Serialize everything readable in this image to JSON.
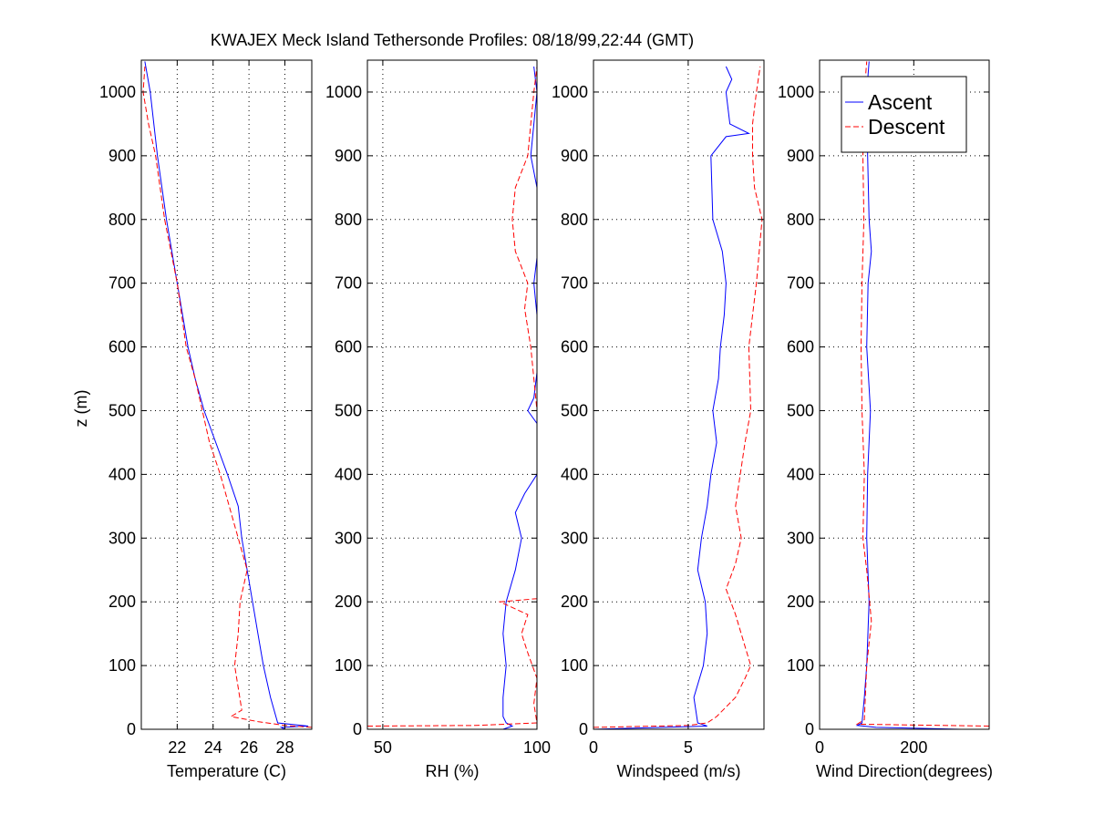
{
  "figure": {
    "title": "KWAJEX Meck Island Tethersonde Profiles: 08/18/99,22:44 (GMT)",
    "ylabel": "z (m)",
    "colors": {
      "ascent": "#0000ff",
      "descent": "#ff0000",
      "grid": "#000000"
    }
  },
  "chart_data": [
    {
      "type": "line",
      "xlabel": "Temperature (C)",
      "ylabel": "z (m)",
      "xlim": [
        20,
        29.5
      ],
      "ylim": [
        0,
        1050
      ],
      "xticks": [
        22,
        24,
        26,
        28
      ],
      "yticks": [
        0,
        100,
        200,
        300,
        400,
        500,
        600,
        700,
        800,
        900,
        1000
      ],
      "grid": true,
      "series": [
        {
          "name": "Ascent",
          "style": "solid",
          "points": [
            [
              28.0,
              0
            ],
            [
              27.8,
              3
            ],
            [
              29.3,
              5
            ],
            [
              27.6,
              10
            ],
            [
              27.2,
              50
            ],
            [
              26.8,
              100
            ],
            [
              26.5,
              150
            ],
            [
              26.2,
              200
            ],
            [
              25.6,
              300
            ],
            [
              25.4,
              350
            ],
            [
              24.8,
              400
            ],
            [
              23.5,
              500
            ],
            [
              23.0,
              550
            ],
            [
              22.6,
              600
            ],
            [
              22.0,
              700
            ],
            [
              21.4,
              800
            ],
            [
              20.9,
              900
            ],
            [
              20.5,
              1000
            ],
            [
              20.2,
              1048
            ]
          ]
        },
        {
          "name": "Descent",
          "style": "dashed",
          "points": [
            [
              29.5,
              3
            ],
            [
              28.0,
              6
            ],
            [
              26.5,
              12
            ],
            [
              25.0,
              20
            ],
            [
              25.6,
              30
            ],
            [
              25.2,
              100
            ],
            [
              25.4,
              150
            ],
            [
              25.5,
              200
            ],
            [
              25.9,
              250
            ],
            [
              25.4,
              300
            ],
            [
              24.4,
              400
            ],
            [
              23.8,
              450
            ],
            [
              23.0,
              550
            ],
            [
              22.5,
              600
            ],
            [
              22.0,
              700
            ],
            [
              21.3,
              800
            ],
            [
              20.8,
              900
            ],
            [
              20.4,
              950
            ],
            [
              20.1,
              1000
            ],
            [
              20.2,
              1040
            ]
          ]
        }
      ]
    },
    {
      "type": "line",
      "xlabel": "RH (%)",
      "xlim": [
        45,
        100
      ],
      "ylim": [
        0,
        1050
      ],
      "xticks": [
        50,
        100
      ],
      "yticks": [
        0,
        100,
        200,
        300,
        400,
        500,
        600,
        700,
        800,
        900,
        1000
      ],
      "grid": true,
      "series": [
        {
          "name": "Ascent",
          "style": "solid",
          "points": [
            [
              89,
              0
            ],
            [
              92,
              5
            ],
            [
              90,
              10
            ],
            [
              89,
              20
            ],
            [
              89,
              50
            ],
            [
              90,
              100
            ],
            [
              89,
              150
            ],
            [
              90,
              200
            ],
            [
              93,
              250
            ],
            [
              95,
              300
            ],
            [
              93,
              340
            ],
            [
              96,
              370
            ],
            [
              100,
              400
            ],
            [
              100,
              480
            ],
            [
              97,
              500
            ],
            [
              99,
              520
            ],
            [
              100,
              560
            ],
            [
              100,
              650
            ],
            [
              99,
              700
            ],
            [
              100,
              740
            ],
            [
              100,
              850
            ],
            [
              98,
              900
            ],
            [
              99,
              950
            ],
            [
              100,
              1000
            ],
            [
              99,
              1040
            ]
          ]
        },
        {
          "name": "Descent",
          "style": "dashed",
          "points": [
            [
              45,
              5
            ],
            [
              80,
              6
            ],
            [
              100,
              10
            ],
            [
              99,
              40
            ],
            [
              100,
              80
            ],
            [
              97,
              120
            ],
            [
              95,
              150
            ],
            [
              97,
              180
            ],
            [
              88,
              200
            ],
            [
              100,
              205
            ],
            [
              100,
              500
            ],
            [
              98,
              600
            ],
            [
              96,
              660
            ],
            [
              97,
              700
            ],
            [
              93,
              750
            ],
            [
              92,
              800
            ],
            [
              93,
              850
            ],
            [
              97,
              900
            ],
            [
              98,
              950
            ],
            [
              99,
              1000
            ],
            [
              100,
              1040
            ]
          ]
        }
      ]
    },
    {
      "type": "line",
      "xlabel": "Windspeed (m/s)",
      "xlim": [
        0,
        9
      ],
      "ylim": [
        0,
        1050
      ],
      "xticks": [
        0,
        5
      ],
      "yticks": [
        0,
        100,
        200,
        300,
        400,
        500,
        600,
        700,
        800,
        900,
        1000
      ],
      "grid": true,
      "series": [
        {
          "name": "Ascent",
          "style": "solid",
          "points": [
            [
              0,
              0
            ],
            [
              6.0,
              5
            ],
            [
              5.5,
              10
            ],
            [
              5.3,
              50
            ],
            [
              5.8,
              100
            ],
            [
              6.0,
              150
            ],
            [
              5.9,
              200
            ],
            [
              5.5,
              250
            ],
            [
              5.7,
              300
            ],
            [
              6.0,
              350
            ],
            [
              6.2,
              400
            ],
            [
              6.5,
              450
            ],
            [
              6.3,
              500
            ],
            [
              6.6,
              550
            ],
            [
              6.7,
              600
            ],
            [
              6.9,
              650
            ],
            [
              7.0,
              700
            ],
            [
              6.8,
              750
            ],
            [
              6.3,
              800
            ],
            [
              6.2,
              900
            ],
            [
              7.0,
              930
            ],
            [
              8.2,
              935
            ],
            [
              7.2,
              950
            ],
            [
              7.0,
              1000
            ],
            [
              7.3,
              1020
            ],
            [
              7.0,
              1040
            ]
          ]
        },
        {
          "name": "Descent",
          "style": "dashed",
          "points": [
            [
              0,
              3
            ],
            [
              5.0,
              6
            ],
            [
              6.0,
              10
            ],
            [
              6.5,
              20
            ],
            [
              7.5,
              50
            ],
            [
              8.0,
              80
            ],
            [
              8.3,
              100
            ],
            [
              8.0,
              130
            ],
            [
              7.5,
              180
            ],
            [
              7.0,
              220
            ],
            [
              7.5,
              260
            ],
            [
              7.8,
              300
            ],
            [
              7.5,
              350
            ],
            [
              8.0,
              450
            ],
            [
              8.3,
              500
            ],
            [
              8.2,
              600
            ],
            [
              8.4,
              650
            ],
            [
              8.6,
              700
            ],
            [
              8.9,
              800
            ],
            [
              8.5,
              850
            ],
            [
              8.4,
              900
            ],
            [
              8.4,
              950
            ],
            [
              8.6,
              1000
            ],
            [
              8.8,
              1040
            ]
          ]
        }
      ]
    },
    {
      "type": "line",
      "xlabel": "Wind Direction(degrees)",
      "xlim": [
        0,
        360
      ],
      "ylim": [
        0,
        1050
      ],
      "xticks": [
        0,
        200
      ],
      "yticks": [
        0,
        100,
        200,
        300,
        400,
        500,
        600,
        700,
        800,
        900,
        1000
      ],
      "grid": true,
      "legend": {
        "placement": "top-right",
        "entries": [
          "Ascent",
          "Descent"
        ]
      },
      "series": [
        {
          "name": "Ascent",
          "style": "solid",
          "points": [
            [
              300,
              0
            ],
            [
              120,
              3
            ],
            [
              80,
              6
            ],
            [
              90,
              10
            ],
            [
              95,
              50
            ],
            [
              100,
              100
            ],
            [
              105,
              200
            ],
            [
              100,
              300
            ],
            [
              102,
              400
            ],
            [
              108,
              500
            ],
            [
              100,
              600
            ],
            [
              103,
              700
            ],
            [
              110,
              750
            ],
            [
              105,
              800
            ],
            [
              102,
              900
            ],
            [
              100,
              1000
            ],
            [
              105,
              1048
            ]
          ]
        },
        {
          "name": "Descent",
          "style": "dashed",
          "points": [
            [
              360,
              5
            ],
            [
              80,
              8
            ],
            [
              95,
              15
            ],
            [
              100,
              100
            ],
            [
              110,
              170
            ],
            [
              100,
              250
            ],
            [
              92,
              300
            ],
            [
              95,
              400
            ],
            [
              90,
              500
            ],
            [
              88,
              600
            ],
            [
              90,
              700
            ],
            [
              94,
              800
            ],
            [
              92,
              900
            ],
            [
              95,
              1000
            ],
            [
              100,
              1048
            ]
          ]
        }
      ]
    }
  ]
}
